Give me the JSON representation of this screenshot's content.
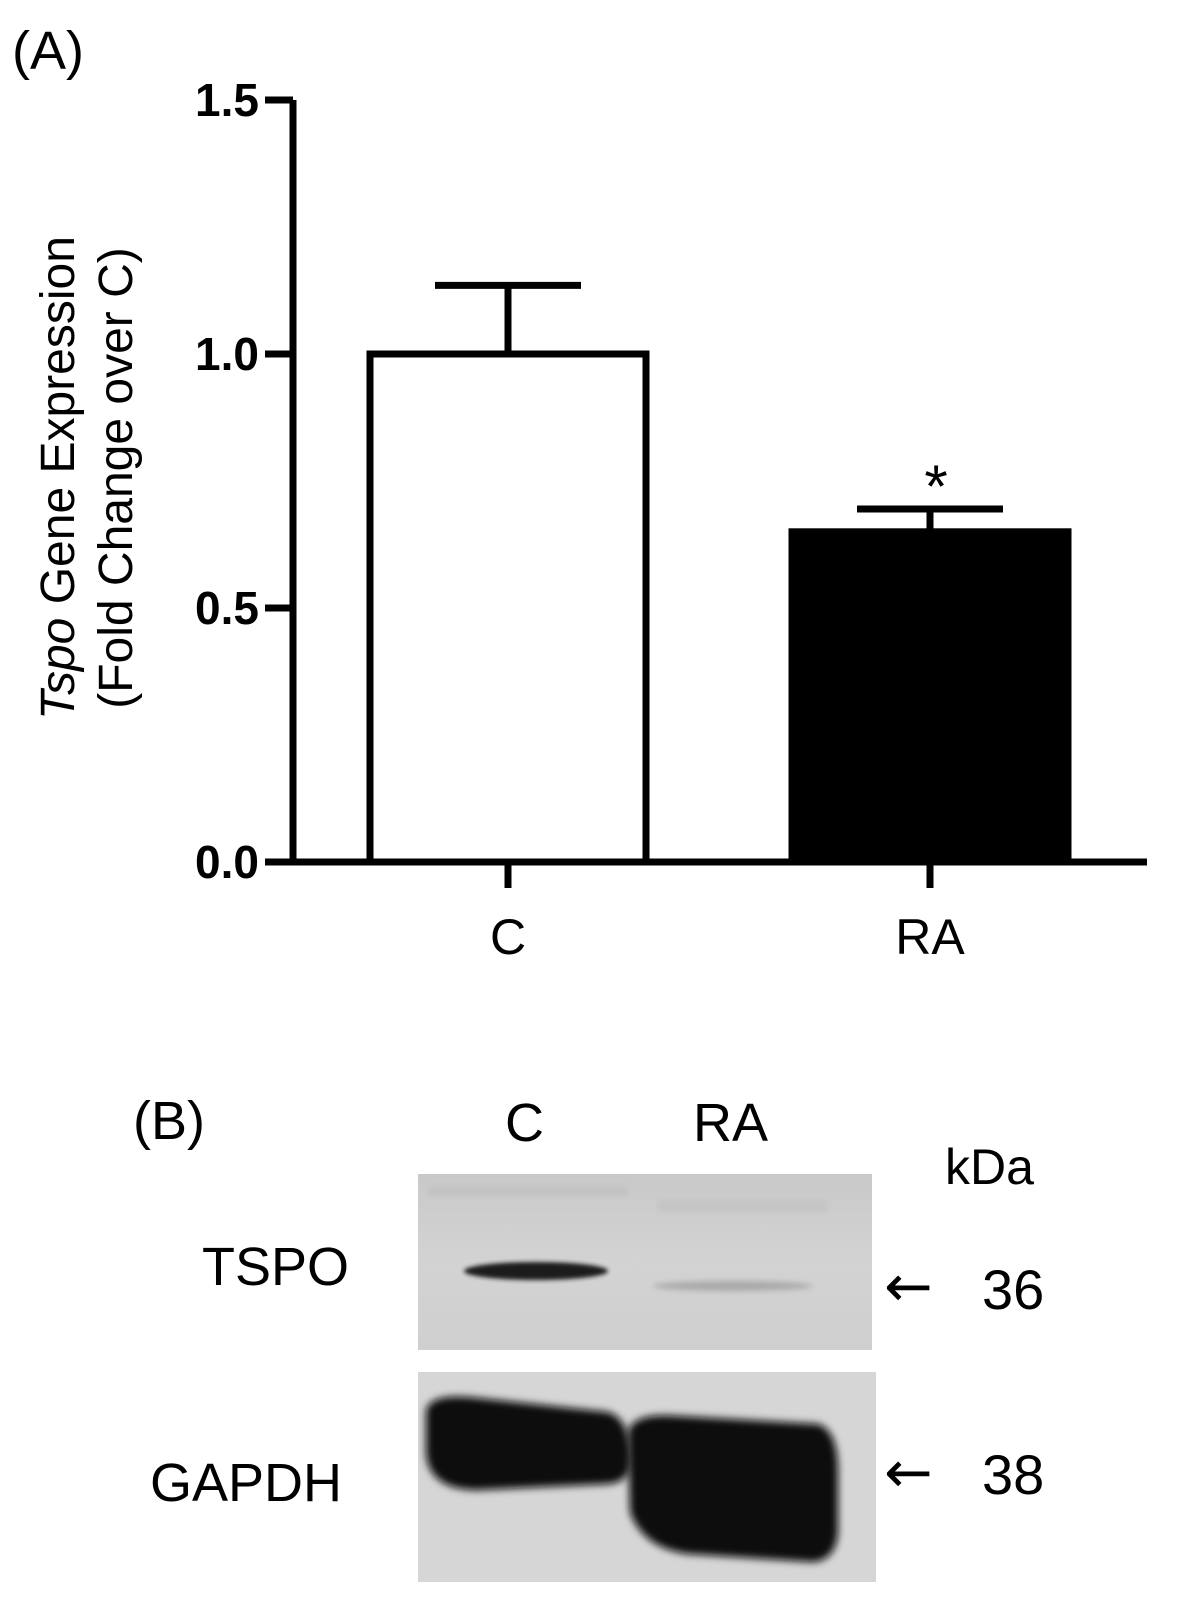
{
  "panels": {
    "a_label": "(A)",
    "b_label": "(B)"
  },
  "chart_data": {
    "type": "bar",
    "ylabel_line1_italic": "Tspo",
    "ylabel_line1_rest": " Gene Expression",
    "ylabel_line2": "(Fold Change over C)",
    "ylim": [
      0,
      1.5
    ],
    "yticks": [
      "0.0",
      "0.5",
      "1.0",
      "1.5"
    ],
    "categories": [
      "C",
      "RA"
    ],
    "values": [
      1.0,
      0.65
    ],
    "errors": [
      0.135,
      0.045
    ],
    "fills": [
      "#ffffff",
      "#000000"
    ],
    "significance": [
      "",
      "*"
    ],
    "grid": false
  },
  "western_blot": {
    "lanes": [
      "C",
      "RA"
    ],
    "unit_label": "kDa",
    "bands": [
      {
        "protein": "TSPO",
        "mw": "36",
        "relative_intensity": [
          1.0,
          0.15
        ]
      },
      {
        "protein": "GAPDH",
        "mw": "38",
        "relative_intensity": [
          1.0,
          1.0
        ]
      }
    ],
    "arrow_glyph": "←"
  },
  "colors": {
    "axis": "#000000",
    "blot_background": "#d4d4d4",
    "band_dark": "#0a0a0a"
  }
}
